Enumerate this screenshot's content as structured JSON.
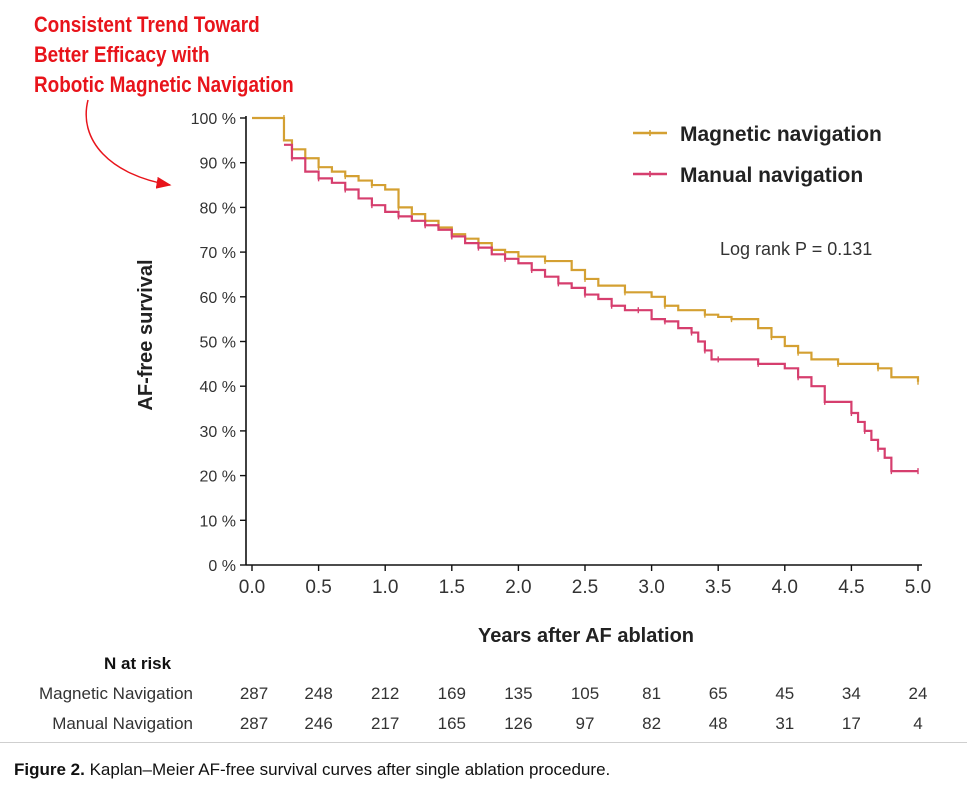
{
  "callout": {
    "lines": [
      "Consistent Trend Toward",
      "Better Efficacy with",
      "Robotic Magnetic Navigation"
    ],
    "color": "#e8141b"
  },
  "caption": {
    "label": "Figure 2.",
    "text": "Kaplan–Meier AF-free survival curves after single ablation procedure."
  },
  "risk_table": {
    "title": "N at risk",
    "rows": [
      {
        "label": "Magnetic Navigation",
        "values": [
          "287",
          "248",
          "212",
          "169",
          "135",
          "105",
          "81",
          "65",
          "45",
          "34",
          "24"
        ]
      },
      {
        "label": "Manual Navigation",
        "values": [
          "287",
          "246",
          "217",
          "165",
          "126",
          "97",
          "82",
          "48",
          "31",
          "17",
          "4"
        ]
      }
    ]
  },
  "chart_data": {
    "type": "line",
    "xlabel": "Years after AF ablation",
    "ylabel": "AF-free survival",
    "xlim": [
      0,
      5
    ],
    "ylim": [
      0,
      100
    ],
    "x_ticks": [
      "0.0",
      "0.5",
      "1.0",
      "1.5",
      "2.0",
      "2.5",
      "3.0",
      "3.5",
      "4.0",
      "4.5",
      "5.0"
    ],
    "y_ticks": [
      "0 %",
      "10 %",
      "20 %",
      "30 %",
      "40 %",
      "50 %",
      "60 %",
      "70 %",
      "80 %",
      "90 %",
      "100 %"
    ],
    "annotation": "Log rank P = 0.131",
    "legend_position": "top-right",
    "grid": false,
    "series": [
      {
        "name": "Magnetic navigation",
        "color": "#d4a032",
        "x": [
          0,
          0.24,
          0.24,
          0.3,
          0.4,
          0.5,
          0.6,
          0.7,
          0.8,
          0.9,
          1.0,
          1.1,
          1.2,
          1.3,
          1.4,
          1.5,
          1.6,
          1.7,
          1.8,
          1.9,
          2.0,
          2.2,
          2.4,
          2.5,
          2.6,
          2.8,
          3.0,
          3.1,
          3.2,
          3.4,
          3.5,
          3.6,
          3.8,
          3.9,
          4.0,
          4.1,
          4.2,
          4.4,
          4.6,
          4.7,
          4.8,
          5.0
        ],
        "y": [
          100,
          100,
          95,
          93,
          91,
          89,
          88,
          87,
          86,
          85,
          84,
          80,
          78.5,
          77,
          75.5,
          74,
          73,
          72,
          70.5,
          70,
          69,
          68,
          66,
          64,
          62.5,
          61,
          60,
          58,
          57,
          56,
          55.5,
          55,
          53,
          51,
          49,
          47.5,
          46,
          45,
          45,
          44,
          42,
          41
        ]
      },
      {
        "name": "Manual navigation",
        "color": "#d63e6e",
        "x": [
          0.24,
          0.3,
          0.4,
          0.5,
          0.6,
          0.7,
          0.8,
          0.9,
          1.0,
          1.1,
          1.2,
          1.3,
          1.4,
          1.5,
          1.6,
          1.7,
          1.8,
          1.9,
          2.0,
          2.1,
          2.2,
          2.3,
          2.4,
          2.5,
          2.6,
          2.7,
          2.8,
          2.9,
          3.0,
          3.1,
          3.2,
          3.3,
          3.35,
          3.4,
          3.45,
          3.5,
          3.6,
          3.8,
          4.0,
          4.1,
          4.2,
          4.3,
          4.4,
          4.5,
          4.55,
          4.6,
          4.65,
          4.7,
          4.75,
          4.8,
          4.85,
          5.0
        ],
        "y": [
          94,
          91,
          88,
          86.5,
          85.5,
          84,
          82,
          80.5,
          79,
          78,
          77,
          76,
          75,
          73.5,
          72,
          71,
          69.5,
          68.5,
          67.5,
          66,
          64.5,
          63,
          62,
          60.5,
          59.5,
          58,
          57,
          57,
          55,
          54.5,
          53,
          52,
          50,
          48,
          46,
          46,
          46,
          45,
          44,
          42,
          40,
          36.5,
          36.5,
          34,
          32,
          30,
          28,
          26,
          24,
          21,
          21,
          21
        ]
      }
    ]
  }
}
